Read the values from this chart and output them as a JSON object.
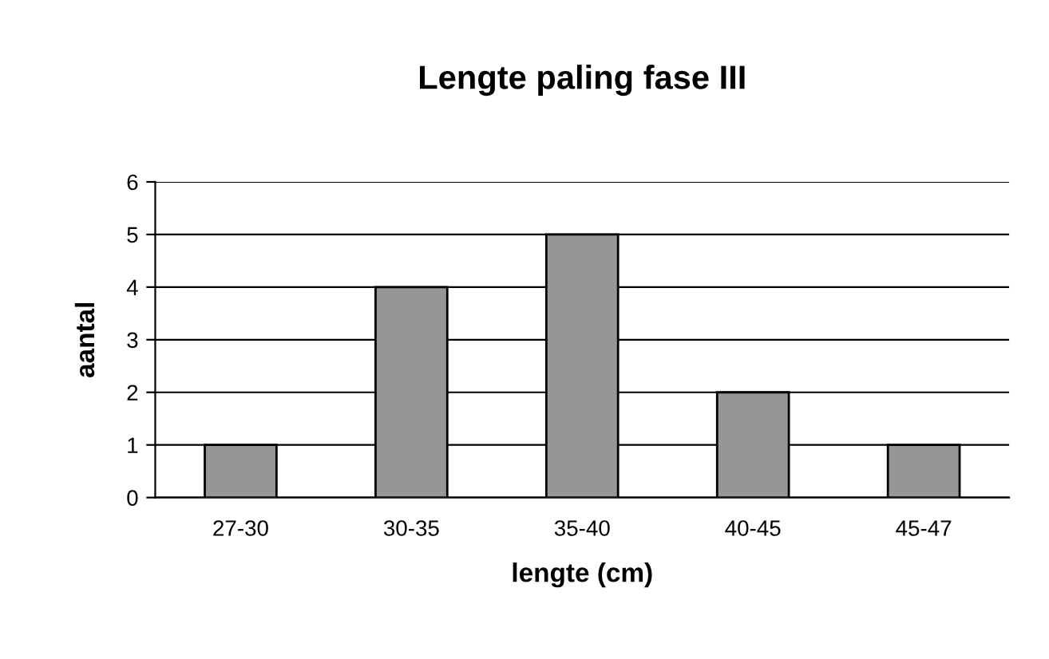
{
  "chart_data": {
    "type": "bar",
    "title": "Lengte paling fase III",
    "xlabel": "lengte (cm)",
    "ylabel": "aantal",
    "categories": [
      "27-30",
      "30-35",
      "35-40",
      "40-45",
      "45-47"
    ],
    "values": [
      1,
      4,
      5,
      2,
      1
    ],
    "color": "#969696",
    "ylim": [
      0,
      6
    ],
    "yticks": [
      0,
      1,
      2,
      3,
      4,
      5,
      6
    ],
    "grid": "y",
    "legend": false
  }
}
